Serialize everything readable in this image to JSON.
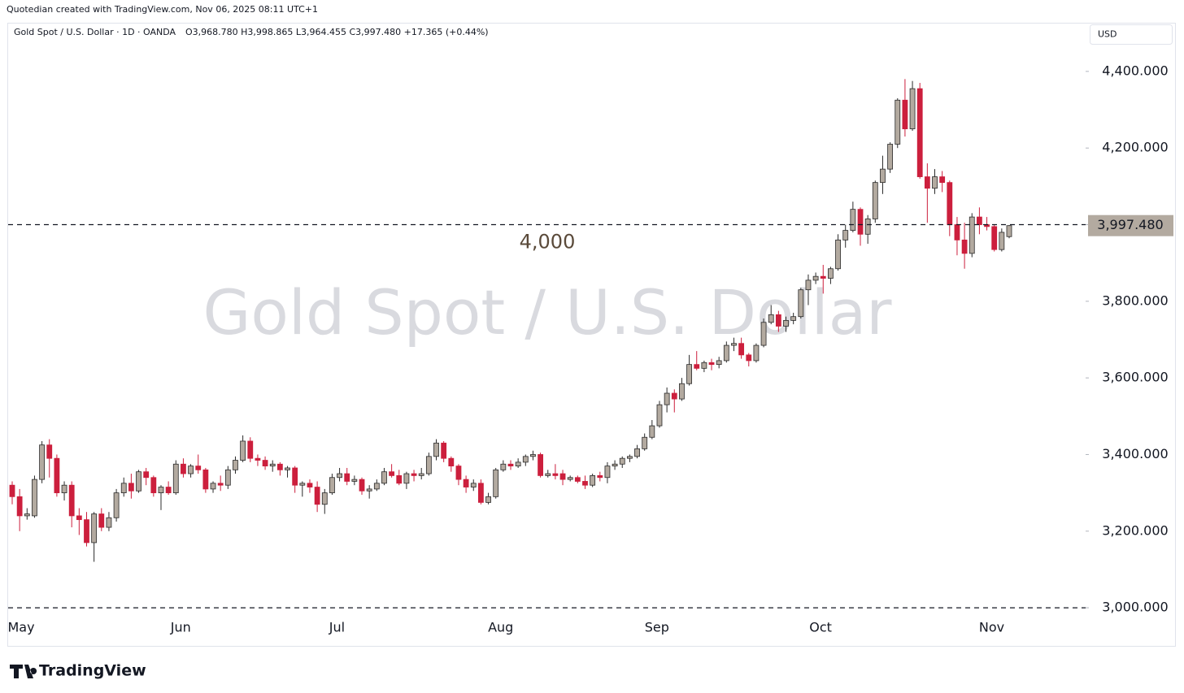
{
  "chart_data": {
    "type": "candlestick",
    "credit": "Quotedian created with TradingView.com, Nov 06, 2025 08:11 UTC+1",
    "title": "Gold Spot / U.S. Dollar · 1D · OANDA",
    "ohlc_text": "O3,968.780 H3,998.865 L3,964.455 C3,997.480 +17.365 (+0.44%)",
    "watermark": "Gold Spot / U.S. Dollar",
    "currency": "USD",
    "brand": "TradingView",
    "up_color": "#b3aaa0",
    "down_color": "#cc1f3d",
    "categories": [
      "May",
      null,
      null,
      null,
      null,
      null,
      null,
      null,
      null,
      null,
      null,
      null,
      null,
      null,
      null,
      null,
      null,
      null,
      null,
      null,
      null,
      null,
      "Jun",
      null,
      null,
      null,
      null,
      null,
      null,
      null,
      null,
      null,
      null,
      null,
      null,
      null,
      null,
      null,
      null,
      null,
      null,
      null,
      null,
      "Jul",
      null,
      null,
      null,
      null,
      null,
      null,
      null,
      null,
      null,
      null,
      null,
      null,
      null,
      null,
      null,
      null,
      null,
      null,
      null,
      null,
      null,
      "Aug",
      null,
      null,
      null,
      null,
      null,
      null,
      null,
      null,
      null,
      null,
      null,
      null,
      null,
      null,
      null,
      null,
      null,
      null,
      null,
      null,
      "Sep",
      null,
      null,
      null,
      null,
      null,
      null,
      null,
      null,
      null,
      null,
      null,
      null,
      null,
      null,
      null,
      null,
      null,
      null,
      null,
      null,
      null,
      "Oct",
      null,
      null,
      null,
      null,
      null,
      null,
      null,
      null,
      null,
      null,
      null,
      null,
      null,
      null,
      null,
      null,
      null,
      null,
      null,
      null,
      null,
      null,
      "Nov",
      null,
      null,
      null
    ],
    "open": [
      3320,
      3290,
      3240,
      3240,
      3335,
      3425,
      3390,
      3300,
      3320,
      3240,
      3230,
      3170,
      3245,
      3210,
      3235,
      3300,
      3325,
      3305,
      3355,
      3340,
      3300,
      3315,
      3300,
      3375,
      3350,
      3370,
      3360,
      3310,
      3325,
      3320,
      3360,
      3385,
      3435,
      3390,
      3385,
      3370,
      3375,
      3360,
      3365,
      3320,
      3325,
      3315,
      3270,
      3300,
      3340,
      3350,
      3330,
      3335,
      3305,
      3310,
      3325,
      3355,
      3345,
      3325,
      3350,
      3345,
      3350,
      3395,
      3430,
      3390,
      3370,
      3335,
      3315,
      3325,
      3275,
      3290,
      3360,
      3375,
      3370,
      3380,
      3395,
      3400,
      3345,
      3350,
      3350,
      3335,
      3340,
      3330,
      3320,
      3345,
      3340,
      3370,
      3375,
      3390,
      3395,
      3415,
      3445,
      3475,
      3530,
      3560,
      3545,
      3585,
      3635,
      3625,
      3640,
      3635,
      3645,
      3685,
      3690,
      3660,
      3645,
      3685,
      3745,
      3765,
      3735,
      3750,
      3760,
      3830,
      3855,
      3865,
      3860,
      3885,
      3960,
      3985,
      4040,
      3975,
      4015,
      4110,
      4145,
      4210,
      4325,
      4250,
      4355,
      4125,
      4095,
      4125,
      4110,
      4000,
      3960,
      3925,
      4020,
      4000,
      3995,
      3935,
      3968.78
    ],
    "high": [
      3330,
      3310,
      3260,
      3345,
      3435,
      3440,
      3400,
      3330,
      3330,
      3260,
      3250,
      3250,
      3260,
      3250,
      3310,
      3340,
      3350,
      3360,
      3365,
      3345,
      3320,
      3330,
      3385,
      3390,
      3375,
      3400,
      3365,
      3330,
      3345,
      3370,
      3395,
      3450,
      3445,
      3400,
      3395,
      3385,
      3380,
      3370,
      3370,
      3330,
      3335,
      3330,
      3310,
      3350,
      3365,
      3365,
      3345,
      3340,
      3320,
      3335,
      3365,
      3375,
      3360,
      3355,
      3360,
      3365,
      3405,
      3440,
      3435,
      3395,
      3375,
      3345,
      3335,
      3335,
      3300,
      3365,
      3385,
      3385,
      3390,
      3400,
      3410,
      3405,
      3360,
      3375,
      3360,
      3345,
      3345,
      3345,
      3350,
      3355,
      3380,
      3385,
      3395,
      3400,
      3425,
      3455,
      3490,
      3540,
      3575,
      3570,
      3600,
      3660,
      3670,
      3645,
      3650,
      3655,
      3695,
      3705,
      3705,
      3665,
      3690,
      3755,
      3790,
      3775,
      3760,
      3770,
      3835,
      3870,
      3875,
      3895,
      3890,
      3975,
      4000,
      4060,
      4045,
      4025,
      4115,
      4180,
      4215,
      4330,
      4380,
      4375,
      4370,
      4160,
      4145,
      4140,
      4115,
      4020,
      4005,
      4030,
      4045,
      4020,
      4000,
      3990,
      3998.865
    ],
    "low": [
      3270,
      3200,
      3230,
      3235,
      3325,
      3340,
      3290,
      3280,
      3210,
      3190,
      3160,
      3120,
      3200,
      3200,
      3225,
      3290,
      3285,
      3300,
      3320,
      3290,
      3255,
      3295,
      3295,
      3340,
      3340,
      3350,
      3300,
      3300,
      3305,
      3310,
      3350,
      3380,
      3380,
      3370,
      3360,
      3355,
      3345,
      3340,
      3300,
      3290,
      3300,
      3250,
      3245,
      3295,
      3330,
      3320,
      3320,
      3295,
      3285,
      3305,
      3320,
      3340,
      3320,
      3310,
      3330,
      3335,
      3345,
      3385,
      3380,
      3355,
      3320,
      3300,
      3305,
      3270,
      3270,
      3285,
      3355,
      3360,
      3365,
      3370,
      3385,
      3340,
      3340,
      3335,
      3320,
      3330,
      3325,
      3310,
      3315,
      3330,
      3325,
      3360,
      3365,
      3380,
      3390,
      3410,
      3440,
      3470,
      3510,
      3510,
      3540,
      3580,
      3620,
      3615,
      3620,
      3625,
      3640,
      3670,
      3650,
      3630,
      3640,
      3680,
      3740,
      3720,
      3720,
      3740,
      3755,
      3790,
      3845,
      3820,
      3845,
      3880,
      3940,
      3980,
      3945,
      3950,
      4005,
      4080,
      4135,
      4200,
      4230,
      4245,
      4120,
      4005,
      4080,
      4085,
      3970,
      3920,
      3885,
      3915,
      3975,
      3985,
      3930,
      3930,
      3964.455
    ],
    "close": [
      3290,
      3240,
      3245,
      3335,
      3425,
      3390,
      3300,
      3320,
      3240,
      3230,
      3170,
      3245,
      3210,
      3235,
      3300,
      3325,
      3305,
      3355,
      3340,
      3300,
      3315,
      3300,
      3375,
      3350,
      3370,
      3360,
      3310,
      3325,
      3320,
      3360,
      3385,
      3435,
      3390,
      3385,
      3370,
      3375,
      3360,
      3365,
      3320,
      3325,
      3315,
      3270,
      3300,
      3340,
      3350,
      3330,
      3335,
      3305,
      3310,
      3325,
      3355,
      3345,
      3325,
      3350,
      3345,
      3350,
      3395,
      3430,
      3390,
      3370,
      3335,
      3315,
      3325,
      3275,
      3290,
      3360,
      3375,
      3370,
      3380,
      3395,
      3400,
      3345,
      3350,
      3345,
      3335,
      3340,
      3330,
      3320,
      3345,
      3340,
      3370,
      3375,
      3390,
      3395,
      3415,
      3445,
      3475,
      3530,
      3560,
      3545,
      3585,
      3635,
      3625,
      3640,
      3635,
      3645,
      3685,
      3690,
      3660,
      3645,
      3685,
      3745,
      3765,
      3735,
      3750,
      3760,
      3830,
      3855,
      3865,
      3860,
      3885,
      3960,
      3985,
      4040,
      3975,
      4015,
      4110,
      4145,
      4210,
      4325,
      4250,
      4355,
      4125,
      4095,
      4125,
      4110,
      4000,
      3960,
      3925,
      4020,
      4000,
      3995,
      3935,
      3980,
      3997.48
    ],
    "ylim": [
      2979,
      4527
    ],
    "yticks": [
      {
        "value": 3000,
        "label": "3,000.000"
      },
      {
        "value": 3200,
        "label": "3,200.000"
      },
      {
        "value": 3400,
        "label": "3,400.000"
      },
      {
        "value": 3600,
        "label": "3,600.000"
      },
      {
        "value": 3800,
        "label": "3,800.000"
      },
      {
        "value": 4000,
        "label": "4,000.000"
      },
      {
        "value": 4200,
        "label": "4,200.000"
      },
      {
        "value": 4400,
        "label": "4,400.000"
      }
    ],
    "reference_lines": [
      {
        "value": 4000,
        "label": "4,000"
      },
      {
        "value": 3000
      }
    ],
    "last_price": {
      "value": 3997.48,
      "label": "3,997.480"
    }
  }
}
